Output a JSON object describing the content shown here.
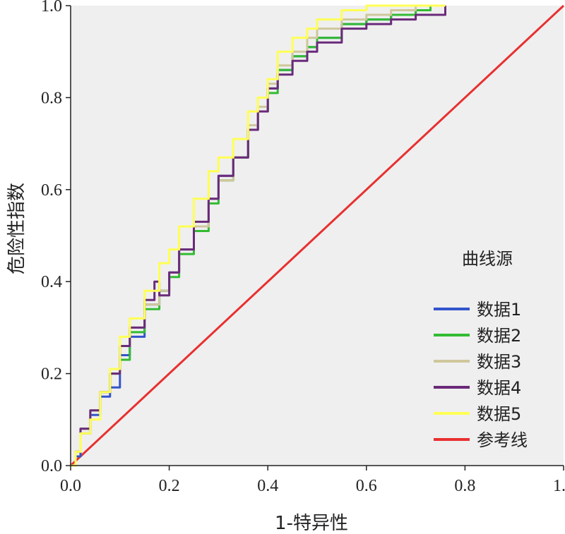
{
  "chart_data": {
    "type": "line",
    "xlabel": "1-特异性",
    "ylabel": "危险性指数",
    "xlim": [
      0,
      1.0
    ],
    "ylim": [
      0,
      1.0
    ],
    "xticks": [
      "0.0",
      "0.2",
      "0.4",
      "0.6",
      "0.8",
      "1.0"
    ],
    "yticks": [
      "0.0",
      "0.2",
      "0.4",
      "0.6",
      "0.8",
      "1.0"
    ],
    "grid": false,
    "legend": {
      "title": "曲线源",
      "position": "right"
    },
    "series": [
      {
        "name": "数据1",
        "color": "#3355cc",
        "x": [
          0.0,
          0.01,
          0.02,
          0.04,
          0.06,
          0.08,
          0.1,
          0.12,
          0.15,
          0.18,
          0.2,
          0.22,
          0.25,
          0.28,
          0.3,
          0.33,
          0.36,
          0.38,
          0.4,
          0.42,
          0.45,
          0.48,
          0.5,
          0.55,
          0.6,
          0.65,
          0.7,
          0.73,
          0.76
        ],
        "y": [
          0.0,
          0.02,
          0.07,
          0.11,
          0.15,
          0.17,
          0.24,
          0.28,
          0.35,
          0.38,
          0.42,
          0.47,
          0.52,
          0.58,
          0.63,
          0.67,
          0.73,
          0.77,
          0.82,
          0.86,
          0.89,
          0.91,
          0.93,
          0.96,
          0.97,
          0.98,
          0.99,
          1.0,
          1.0
        ]
      },
      {
        "name": "数据2",
        "color": "#33bb33",
        "x": [
          0.0,
          0.01,
          0.02,
          0.04,
          0.06,
          0.08,
          0.1,
          0.12,
          0.15,
          0.18,
          0.2,
          0.22,
          0.25,
          0.28,
          0.3,
          0.33,
          0.36,
          0.38,
          0.4,
          0.42,
          0.45,
          0.48,
          0.5,
          0.55,
          0.6,
          0.65,
          0.7,
          0.73,
          0.76
        ],
        "y": [
          0.0,
          0.03,
          0.08,
          0.12,
          0.16,
          0.2,
          0.23,
          0.29,
          0.34,
          0.38,
          0.41,
          0.46,
          0.51,
          0.57,
          0.62,
          0.67,
          0.73,
          0.77,
          0.81,
          0.86,
          0.89,
          0.91,
          0.93,
          0.96,
          0.97,
          0.98,
          0.99,
          1.0,
          1.0
        ]
      },
      {
        "name": "数据3",
        "color": "#cfc79c",
        "x": [
          0.0,
          0.01,
          0.02,
          0.04,
          0.06,
          0.08,
          0.1,
          0.12,
          0.15,
          0.18,
          0.2,
          0.22,
          0.25,
          0.28,
          0.3,
          0.33,
          0.36,
          0.38,
          0.4,
          0.42,
          0.45,
          0.48,
          0.5,
          0.55,
          0.6,
          0.65,
          0.7,
          0.73,
          0.75
        ],
        "y": [
          0.0,
          0.03,
          0.08,
          0.12,
          0.16,
          0.2,
          0.26,
          0.3,
          0.35,
          0.38,
          0.42,
          0.47,
          0.52,
          0.58,
          0.62,
          0.67,
          0.74,
          0.78,
          0.83,
          0.87,
          0.9,
          0.93,
          0.95,
          0.97,
          0.98,
          0.99,
          1.0,
          1.0,
          1.0
        ]
      },
      {
        "name": "数据4",
        "color": "#6a2a7a",
        "x": [
          0.0,
          0.01,
          0.02,
          0.04,
          0.06,
          0.08,
          0.1,
          0.12,
          0.15,
          0.17,
          0.18,
          0.2,
          0.22,
          0.25,
          0.28,
          0.3,
          0.33,
          0.36,
          0.38,
          0.4,
          0.42,
          0.45,
          0.48,
          0.5,
          0.55,
          0.6,
          0.65,
          0.7,
          0.76
        ],
        "y": [
          0.0,
          0.03,
          0.08,
          0.12,
          0.16,
          0.2,
          0.26,
          0.3,
          0.36,
          0.4,
          0.37,
          0.42,
          0.47,
          0.53,
          0.58,
          0.63,
          0.67,
          0.73,
          0.77,
          0.82,
          0.85,
          0.88,
          0.9,
          0.92,
          0.95,
          0.96,
          0.97,
          0.98,
          1.0
        ]
      },
      {
        "name": "数据5",
        "color": "#ffff55",
        "x": [
          0.0,
          0.01,
          0.02,
          0.04,
          0.06,
          0.08,
          0.1,
          0.12,
          0.15,
          0.18,
          0.2,
          0.22,
          0.25,
          0.28,
          0.3,
          0.33,
          0.36,
          0.38,
          0.4,
          0.42,
          0.45,
          0.48,
          0.5,
          0.55,
          0.6,
          0.65,
          0.7,
          0.73,
          0.76
        ],
        "y": [
          0.0,
          0.03,
          0.07,
          0.1,
          0.16,
          0.21,
          0.28,
          0.32,
          0.38,
          0.44,
          0.47,
          0.52,
          0.58,
          0.64,
          0.67,
          0.71,
          0.77,
          0.8,
          0.84,
          0.9,
          0.93,
          0.95,
          0.97,
          0.99,
          1.0,
          1.0,
          1.0,
          1.0,
          1.0
        ]
      },
      {
        "name": "参考线",
        "color": "#e83030",
        "x": [
          0.0,
          1.0
        ],
        "y": [
          0.0,
          1.0
        ]
      }
    ]
  }
}
